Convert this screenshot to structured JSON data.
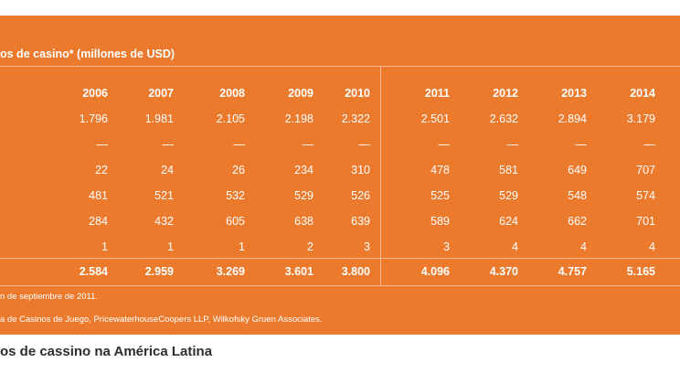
{
  "table": {
    "title": "os de casino* (millones de USD)",
    "years": [
      "2006",
      "2007",
      "2008",
      "2009",
      "2010",
      "2011",
      "2012",
      "2013",
      "2014"
    ],
    "rows": [
      [
        "1.796",
        "1.981",
        "2.105",
        "2.198",
        "2.322",
        "2.501",
        "2.632",
        "2.894",
        "3.179"
      ],
      [
        "—",
        "—",
        "—",
        "—",
        "—",
        "—",
        "—",
        "—",
        "—"
      ],
      [
        "22",
        "24",
        "26",
        "234",
        "310",
        "478",
        "581",
        "649",
        "707"
      ],
      [
        "481",
        "521",
        "532",
        "529",
        "526",
        "525",
        "529",
        "548",
        "574"
      ],
      [
        "284",
        "432",
        "605",
        "638",
        "639",
        "589",
        "624",
        "662",
        "701"
      ],
      [
        "1",
        "1",
        "1",
        "2",
        "3",
        "3",
        "4",
        "4",
        "4"
      ]
    ],
    "totals": [
      "2.584",
      "2.959",
      "3.269",
      "3.601",
      "3.800",
      "4.096",
      "4.370",
      "4.757",
      "5.165"
    ],
    "notes": [
      "n de septiembre de 2011.",
      "a de Casinos de Juego, PricewaterhouseCoopers LLP, Wilkofsky Gruen Associates."
    ]
  },
  "caption": "os de cassino na América Latina",
  "colors": {
    "panel": "#ec7a2d",
    "text": "#ffffff",
    "caption": "#2e2e2e"
  }
}
